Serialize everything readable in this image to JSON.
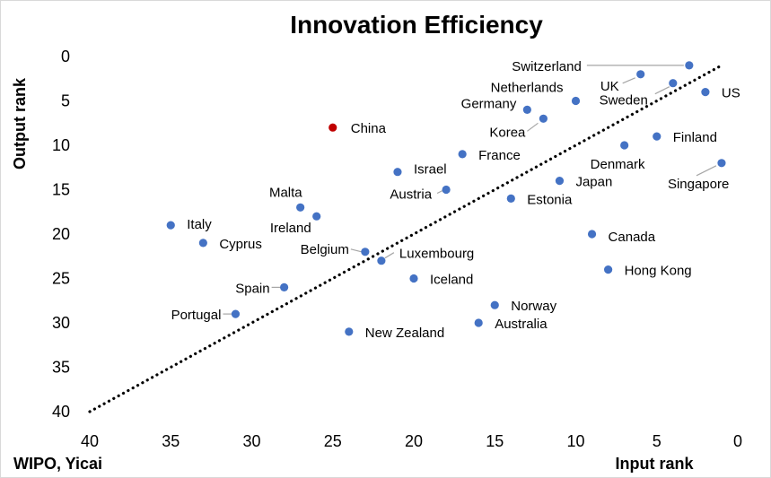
{
  "chart_data": {
    "type": "scatter",
    "title": "Innovation Efficiency",
    "xlabel": "Input rank",
    "ylabel": "Output rank",
    "source": "WIPO, Yicai",
    "xlim": [
      40,
      0
    ],
    "ylim": [
      40,
      0
    ],
    "x_reversed": true,
    "y_reversed": true,
    "xticks": [
      40,
      35,
      30,
      25,
      20,
      15,
      10,
      5,
      0
    ],
    "yticks": [
      0,
      5,
      10,
      15,
      20,
      25,
      30,
      35,
      40
    ],
    "grid": false,
    "legend": "none",
    "reference_line": {
      "style": "dotted",
      "from": [
        40,
        40
      ],
      "to": [
        1,
        1
      ]
    },
    "colors": {
      "point": "#4472c4",
      "highlight": "#c00000",
      "leader": "#a6a6a6",
      "line": "#000000"
    },
    "points": [
      {
        "label": "Switzerland",
        "x": 3,
        "y": 1
      },
      {
        "label": "UK",
        "x": 6,
        "y": 2
      },
      {
        "label": "Netherlands",
        "x": 10,
        "y": 5
      },
      {
        "label": "Sweden",
        "x": 4,
        "y": 3
      },
      {
        "label": "US",
        "x": 2,
        "y": 4
      },
      {
        "label": "Germany",
        "x": 13,
        "y": 6
      },
      {
        "label": "Korea",
        "x": 12,
        "y": 7
      },
      {
        "label": "China",
        "x": 25,
        "y": 8,
        "highlight": true
      },
      {
        "label": "Finland",
        "x": 5,
        "y": 9
      },
      {
        "label": "Denmark",
        "x": 7,
        "y": 10
      },
      {
        "label": "France",
        "x": 17,
        "y": 11
      },
      {
        "label": "Singapore",
        "x": 1,
        "y": 12
      },
      {
        "label": "Israel",
        "x": 21,
        "y": 13
      },
      {
        "label": "Japan",
        "x": 11,
        "y": 14
      },
      {
        "label": "Austria",
        "x": 18,
        "y": 15
      },
      {
        "label": "Estonia",
        "x": 14,
        "y": 16
      },
      {
        "label": "Malta",
        "x": 27,
        "y": 17
      },
      {
        "label": "Ireland",
        "x": 26,
        "y": 18
      },
      {
        "label": "Italy",
        "x": 35,
        "y": 19
      },
      {
        "label": "Canada",
        "x": 9,
        "y": 20
      },
      {
        "label": "Cyprus",
        "x": 33,
        "y": 21
      },
      {
        "label": "Belgium",
        "x": 23,
        "y": 22
      },
      {
        "label": "Luxembourg",
        "x": 22,
        "y": 23
      },
      {
        "label": "Hong Kong",
        "x": 8,
        "y": 24
      },
      {
        "label": "Iceland",
        "x": 20,
        "y": 25
      },
      {
        "label": "Spain",
        "x": 28,
        "y": 26
      },
      {
        "label": "Norway",
        "x": 15,
        "y": 28
      },
      {
        "label": "Portugal",
        "x": 31,
        "y": 29
      },
      {
        "label": "Australia",
        "x": 16,
        "y": 30
      },
      {
        "label": "New Zealand",
        "x": 24,
        "y": 31
      }
    ]
  }
}
